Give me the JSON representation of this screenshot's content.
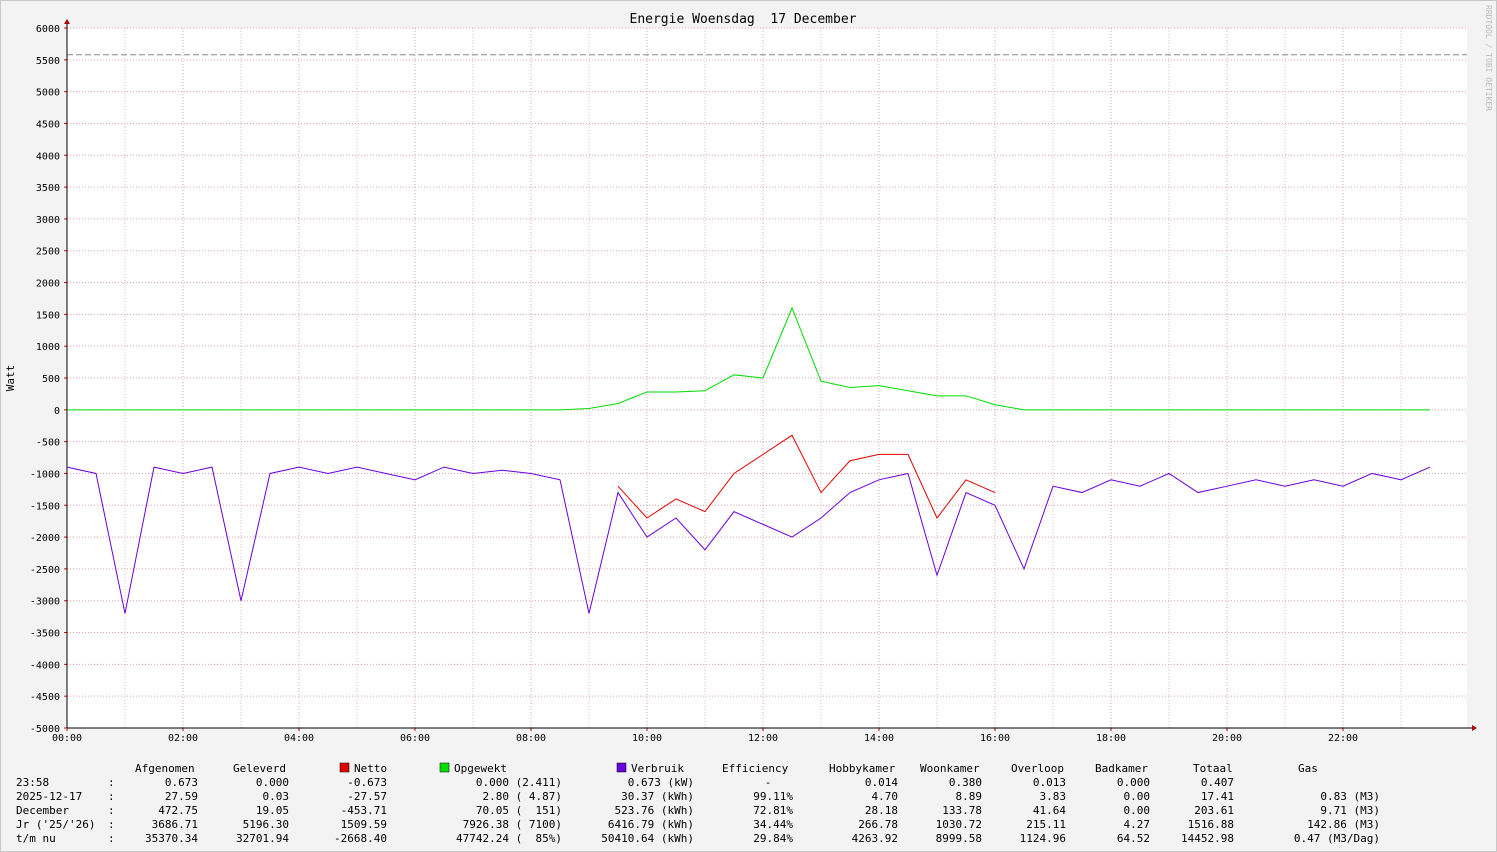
{
  "chart_data": {
    "type": "line",
    "title": "Energie Woensdag  17 December",
    "ylabel": "Watt",
    "watermark": "RRDTOOL / TOBI OETIKER",
    "x": [
      0,
      0.5,
      1,
      1.5,
      2,
      2.5,
      3,
      3.5,
      4,
      4.5,
      5,
      5.5,
      6,
      6.5,
      7,
      7.5,
      8,
      8.5,
      9,
      9.5,
      10,
      10.5,
      11,
      11.5,
      12,
      12.5,
      13,
      13.5,
      14,
      14.5,
      15,
      15.5,
      16,
      16.5,
      17,
      17.5,
      18,
      18.5,
      19,
      19.5,
      20,
      20.5,
      21,
      21.5,
      22,
      22.5,
      23,
      23.5
    ],
    "xlim": [
      0,
      24
    ],
    "xticks": [
      {
        "value": 0,
        "label": "00:00"
      },
      {
        "value": 2,
        "label": "02:00"
      },
      {
        "value": 4,
        "label": "04:00"
      },
      {
        "value": 6,
        "label": "06:00"
      },
      {
        "value": 8,
        "label": "08:00"
      },
      {
        "value": 10,
        "label": "10:00"
      },
      {
        "value": 12,
        "label": "12:00"
      },
      {
        "value": 14,
        "label": "14:00"
      },
      {
        "value": 16,
        "label": "16:00"
      },
      {
        "value": 18,
        "label": "18:00"
      },
      {
        "value": 20,
        "label": "20:00"
      },
      {
        "value": 22,
        "label": "22:00"
      }
    ],
    "ylim": [
      -5000,
      6000
    ],
    "yticks": [
      -5000,
      -4500,
      -4000,
      -3500,
      -3000,
      -2500,
      -2000,
      -1500,
      -1000,
      -500,
      0,
      500,
      1000,
      1500,
      2000,
      2500,
      3000,
      3500,
      4000,
      4500,
      5000,
      5500,
      6000
    ],
    "hrule": 5580,
    "grid": true,
    "series": [
      {
        "name": "Netto",
        "color": "#e00000",
        "values": [
          null,
          null,
          null,
          null,
          null,
          null,
          null,
          null,
          null,
          null,
          null,
          null,
          null,
          null,
          null,
          null,
          null,
          null,
          null,
          -1200,
          -1700,
          -1400,
          -1600,
          -1000,
          -700,
          -400,
          -1300,
          -800,
          -700,
          -700,
          -1700,
          -1100,
          -1300,
          null,
          null,
          null,
          null,
          null,
          null,
          null,
          null,
          null,
          null,
          null,
          null,
          null,
          null,
          null
        ]
      },
      {
        "name": "Opgewekt",
        "color": "#00dd00",
        "values": [
          0,
          0,
          0,
          0,
          0,
          0,
          0,
          0,
          0,
          0,
          0,
          0,
          0,
          0,
          0,
          0,
          0,
          0,
          20,
          100,
          280,
          280,
          300,
          550,
          500,
          1600,
          450,
          350,
          380,
          300,
          220,
          220,
          80,
          0,
          0,
          0,
          0,
          0,
          0,
          0,
          0,
          0,
          0,
          0,
          0,
          0,
          0,
          0
        ]
      },
      {
        "name": "Verbruik",
        "color": "#6a00dd",
        "values": [
          -900,
          -1000,
          -3200,
          -900,
          -1000,
          -900,
          -3000,
          -1000,
          -900,
          -1000,
          -900,
          -1000,
          -1100,
          -900,
          -1000,
          -950,
          -1000,
          -1100,
          -3200,
          -1300,
          -2000,
          -1700,
          -2200,
          -1600,
          -1800,
          -2000,
          -1700,
          -1300,
          -1100,
          -1000,
          -2600,
          -1300,
          -1500,
          -2500,
          -1200,
          -1300,
          -1100,
          -1200,
          -1000,
          -1300,
          -1200,
          -1100,
          -1200,
          -1100,
          -1200,
          -1000,
          -1100,
          -900
        ]
      }
    ],
    "table": {
      "headers": [
        "Afgenomen",
        "Geleverd",
        "Efficiency",
        "Hobbykamer",
        "Woonkamer",
        "Overloop",
        "Badkamer",
        "Totaal",
        "Gas"
      ],
      "rows": [
        [
          "23:58",
          ":",
          "0.673",
          "0.000",
          "-0.673",
          "0.000 (2.411)",
          "0.673 (kW)",
          "-",
          "0.014",
          "0.380",
          "0.013",
          "0.000",
          "0.407"
        ],
        [
          "2025-12-17",
          ":",
          "27.59",
          "0.03",
          "-27.57",
          "2.80 ( 4.87)",
          "30.37 (kWh)",
          "99.11%",
          "4.70",
          "8.89",
          "3.83",
          "0.00",
          "17.41",
          "0.83 (M3)"
        ],
        [
          "December",
          ":",
          "472.75",
          "19.05",
          "-453.71",
          "70.05 (  151)",
          "523.76 (kWh)",
          "72.81%",
          "28.18",
          "133.78",
          "41.64",
          "0.00",
          "203.61",
          "9.71 (M3)"
        ],
        [
          "Jr ('25/'26)",
          ":",
          "3686.71",
          "5196.30",
          "1509.59",
          "7926.38 ( 7100)",
          "6416.79 (kWh)",
          "34.44%",
          "266.78",
          "1030.72",
          "215.11",
          "4.27",
          "1516.88",
          "142.86 (M3)"
        ],
        [
          "t/m nu",
          ":",
          "35370.34",
          "32701.94",
          "-2668.40",
          "47742.24 (  85%)",
          "50410.64 (kWh)",
          "29.84%",
          "4263.92",
          "8999.58",
          "1124.96",
          "64.52",
          "14452.98",
          "0.47 (M3/Dag)"
        ]
      ]
    }
  }
}
